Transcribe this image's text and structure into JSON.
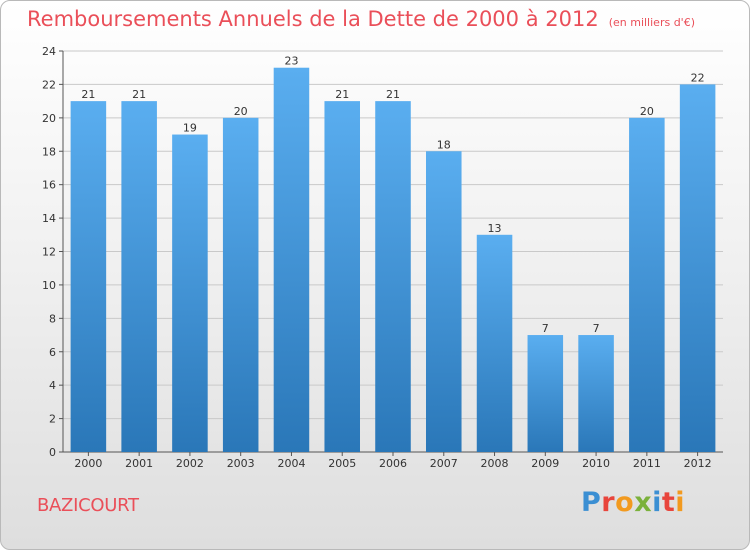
{
  "header": {
    "title": "Remboursements Annuels de la Dette de 2000 à 2012",
    "subtitle": "(en milliers d'€)"
  },
  "commune": "BAZICOURT",
  "logo": {
    "text": "Proxiti",
    "letter_colors": [
      "#3b8fd3",
      "#e8453c",
      "#f29a1f",
      "#7bb13b",
      "#3b8fd3",
      "#e8453c",
      "#f29a1f"
    ]
  },
  "colors": {
    "bar_top": "#5aaef0",
    "bar_bottom": "#2a77b8",
    "title": "#ea4f59",
    "grid": "#c9c9c9"
  },
  "chart_data": {
    "type": "bar",
    "title": "Remboursements Annuels de la Dette de 2000 à 2012",
    "subtitle": "(en milliers d'€)",
    "categories": [
      "2000",
      "2001",
      "2002",
      "2003",
      "2004",
      "2005",
      "2006",
      "2007",
      "2008",
      "2009",
      "2010",
      "2011",
      "2012"
    ],
    "values": [
      21,
      21,
      19,
      20,
      23,
      21,
      21,
      18,
      13,
      7,
      7,
      20,
      22
    ],
    "ylim": [
      0,
      24
    ],
    "yticks": [
      0,
      2,
      4,
      6,
      8,
      10,
      12,
      14,
      16,
      18,
      20,
      22,
      24
    ],
    "grid": true,
    "data_labels": true,
    "xlabel": "",
    "ylabel": ""
  }
}
